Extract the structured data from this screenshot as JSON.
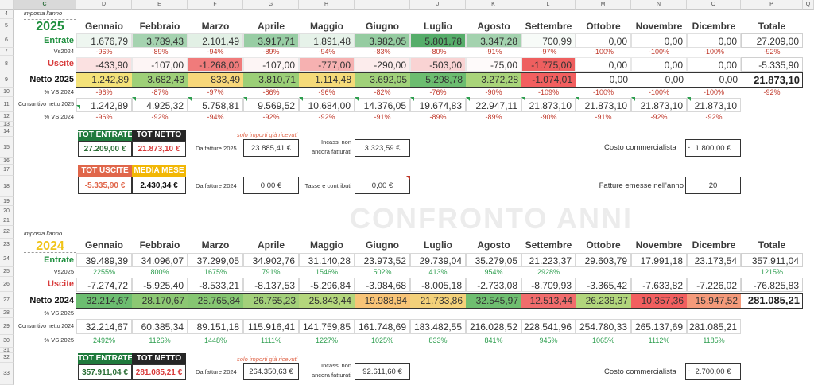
{
  "columns": [
    "C",
    "D",
    "E",
    "F",
    "G",
    "H",
    "I",
    "J",
    "K",
    "L",
    "M",
    "N",
    "O",
    "P",
    "Q"
  ],
  "rows": [
    "4",
    "5",
    "6",
    "7",
    "8",
    "9",
    "10",
    "11",
    "12",
    "13",
    "14",
    "15",
    "16",
    "17",
    "18",
    "19",
    "20",
    "21",
    "22",
    "23",
    "24",
    "25",
    "26",
    "27",
    "28",
    "29",
    "30",
    "31",
    "32",
    "33"
  ],
  "months": [
    "Gennaio",
    "Febbraio",
    "Marzo",
    "Aprile",
    "Maggio",
    "Giugno",
    "Luglio",
    "Agosto",
    "Settembre",
    "Ottobre",
    "Novembre",
    "Dicembre"
  ],
  "total_label": "Totale",
  "watermark": "CONFRONTO ANNI",
  "y2025": {
    "caption": "imposta l'anno",
    "year": "2025",
    "entrate_label": "Entrate",
    "entrate": [
      "1.676,79",
      "3.789,43",
      "2.101,49",
      "3.917,71",
      "1.891,48",
      "3.982,05",
      "5.801,78",
      "3.347,28",
      "700,99",
      "0,00",
      "0,00",
      "0,00"
    ],
    "entrate_total": "27.209,00",
    "vs_label": "Vs2024",
    "entrate_vs": [
      "-96%",
      "-89%",
      "-94%",
      "-89%",
      "-94%",
      "-83%",
      "-80%",
      "-91%",
      "-97%",
      "-100%",
      "-100%",
      "-100%"
    ],
    "entrate_vs_total": "-92%",
    "uscite_label": "Uscite",
    "uscite": [
      "-433,90",
      "-107,00",
      "-1.268,00",
      "-107,00",
      "-777,00",
      "-290,00",
      "-503,00",
      "-75,00",
      "-1.775,00",
      "0,00",
      "0,00",
      "0,00"
    ],
    "uscite_total": "-5.335,90",
    "netto_label": "Netto 2025",
    "netto": [
      "1.242,89",
      "3.682,43",
      "833,49",
      "3.810,71",
      "1.114,48",
      "3.692,05",
      "5.298,78",
      "3.272,28",
      "-1.074,01",
      "0,00",
      "0,00",
      "0,00"
    ],
    "netto_total": "21.873,10",
    "netto_vs_label": "% VS 2024",
    "netto_vs": [
      "-96%",
      "-87%",
      "-97%",
      "-86%",
      "-96%",
      "-82%",
      "-76%",
      "-90%",
      "-109%",
      "-100%",
      "-100%",
      "-100%"
    ],
    "netto_vs_total": "-92%",
    "cons_label": "Consuntivo netto 2025",
    "cons": [
      "1.242,89",
      "4.925,32",
      "5.758,81",
      "9.569,52",
      "10.684,00",
      "14.376,05",
      "19.674,83",
      "22.947,11",
      "21.873,10",
      "21.873,10",
      "21.873,10",
      "21.873,10"
    ],
    "cons_vs_label": "% VS 2024",
    "cons_vs": [
      "-96%",
      "-92%",
      "-94%",
      "-92%",
      "-92%",
      "-91%",
      "-89%",
      "-89%",
      "-90%",
      "-91%",
      "-92%",
      "-92%"
    ],
    "tot_entrate_label": "TOT ENTRATE",
    "tot_entrate": "27.209,00 €",
    "tot_netto_label": "TOT NETTO",
    "tot_netto": "21.873,10 €",
    "tot_uscite_label": "TOT USCITE",
    "tot_uscite": "-5.335,90 €",
    "media_label": "MEDIA MESE",
    "media": "2.430,34 €",
    "note": "solo importi già ricevuti",
    "fatture_cur_label": "Da fatture 2025",
    "fatture_cur": "23.885,41 €",
    "fatture_prev_label": "Da fatture 2024",
    "fatture_prev": "0,00 €",
    "incassi_label_1": "Incassi non",
    "incassi_label_2": "ancora fatturati",
    "incassi": "3.323,59 €",
    "tasse_label": "Tasse e contributi",
    "tasse": "0,00 €",
    "costo_label": "Costo commercialista",
    "costo_dash": "-",
    "costo": "1.800,00 €",
    "fatture_emesse_label": "Fatture emesse nell'anno",
    "fatture_emesse": "20"
  },
  "y2024": {
    "caption": "imposta l'anno",
    "year": "2024",
    "entrate_label": "Entrate",
    "entrate": [
      "39.489,39",
      "34.096,07",
      "37.299,05",
      "34.902,76",
      "31.140,28",
      "23.973,52",
      "29.739,04",
      "35.279,05",
      "21.223,37",
      "29.603,79",
      "17.991,18",
      "23.173,54"
    ],
    "entrate_total": "357.911,04",
    "vs_label": "Vs2025",
    "entrate_vs": [
      "2255%",
      "800%",
      "1675%",
      "791%",
      "1546%",
      "502%",
      "413%",
      "954%",
      "2928%",
      "",
      "",
      ""
    ],
    "entrate_vs_total": "1215%",
    "uscite_label": "Uscite",
    "uscite": [
      "-7.274,72",
      "-5.925,40",
      "-8.533,21",
      "-8.137,53",
      "-5.296,84",
      "-3.984,68",
      "-8.005,18",
      "-2.733,08",
      "-8.709,93",
      "-3.365,42",
      "-7.633,82",
      "-7.226,02"
    ],
    "uscite_total": "-76.825,83",
    "netto_label": "Netto 2024",
    "netto": [
      "32.214,67",
      "28.170,67",
      "28.765,84",
      "26.765,23",
      "25.843,44",
      "19.988,84",
      "21.733,86",
      "32.545,97",
      "12.513,44",
      "26.238,37",
      "10.357,36",
      "15.947,52"
    ],
    "netto_total": "281.085,21",
    "netto_vs_label": "% VS 2025",
    "cons_label": "Consuntivo netto 2024",
    "cons": [
      "32.214,67",
      "60.385,34",
      "89.151,18",
      "115.916,41",
      "141.759,85",
      "161.748,69",
      "183.482,55",
      "216.028,52",
      "228.541,96",
      "254.780,33",
      "265.137,69",
      "281.085,21"
    ],
    "cons_vs_label": "% VS 2025",
    "cons_vs": [
      "2492%",
      "1126%",
      "1448%",
      "1111%",
      "1227%",
      "1025%",
      "833%",
      "841%",
      "945%",
      "1065%",
      "1112%",
      "1185%"
    ],
    "tot_entrate_label": "TOT ENTRATE",
    "tot_entrate": "357.911,04 €",
    "tot_netto_label": "TOT NETTO",
    "tot_netto": "281.085,21 €",
    "note": "solo importi già ricevuti",
    "fatture_cur_label": "Da fatture 2024",
    "fatture_cur": "264.350,63 €",
    "incassi_label_1": "Incassi non",
    "incassi_label_2": "ancora fatturati",
    "incassi": "92.611,60 €",
    "costo_label": "Costo commercialista",
    "costo_dash": "-",
    "costo": "2.700,00 €"
  },
  "colors": {
    "entrate_2025": [
      "#eef6f0",
      "#a5d3b0",
      "#e2f0e5",
      "#98cda4",
      "#e6f2e9",
      "#95cca1",
      "#56ad6a",
      "#a3d2ae",
      "#f7fbf8",
      "#ffffff",
      "#ffffff",
      "#ffffff"
    ],
    "uscite_2025": [
      "#fbe1e1",
      "#fdf5f5",
      "#f07b7b",
      "#fdf5f5",
      "#f6b1b1",
      "#fcecec",
      "#f9d3d3",
      "#fefafa",
      "#ee5f5f",
      "#ffffff",
      "#ffffff",
      "#ffffff"
    ],
    "netto_2025": [
      "#f4e279",
      "#9ed078",
      "#f7d77a",
      "#9bcf77",
      "#f5da79",
      "#a0d17a",
      "#6cbd70",
      "#a9d47a",
      "#f25f5f",
      "#ffffff",
      "#ffffff",
      "#ffffff"
    ],
    "netto_2024": [
      "#6cbd70",
      "#8cc873",
      "#86c672",
      "#a3d07a",
      "#b4d67c",
      "#f8c477",
      "#f3d17a",
      "#6fbe70",
      "#f16c6c",
      "#b2d57c",
      "#f25f5f",
      "#f49a7a"
    ],
    "tot_entrate_tag": "#1f7a3c",
    "tot_netto_tag": "#262626",
    "tot_uscite_tag": "#e0664a",
    "media_tag": "#f2b705",
    "year_color": "#1e8f3e",
    "year_2024_color": "#f0c419",
    "entrate_label": "#1e8f3e",
    "uscite_label": "#d83a3a"
  }
}
